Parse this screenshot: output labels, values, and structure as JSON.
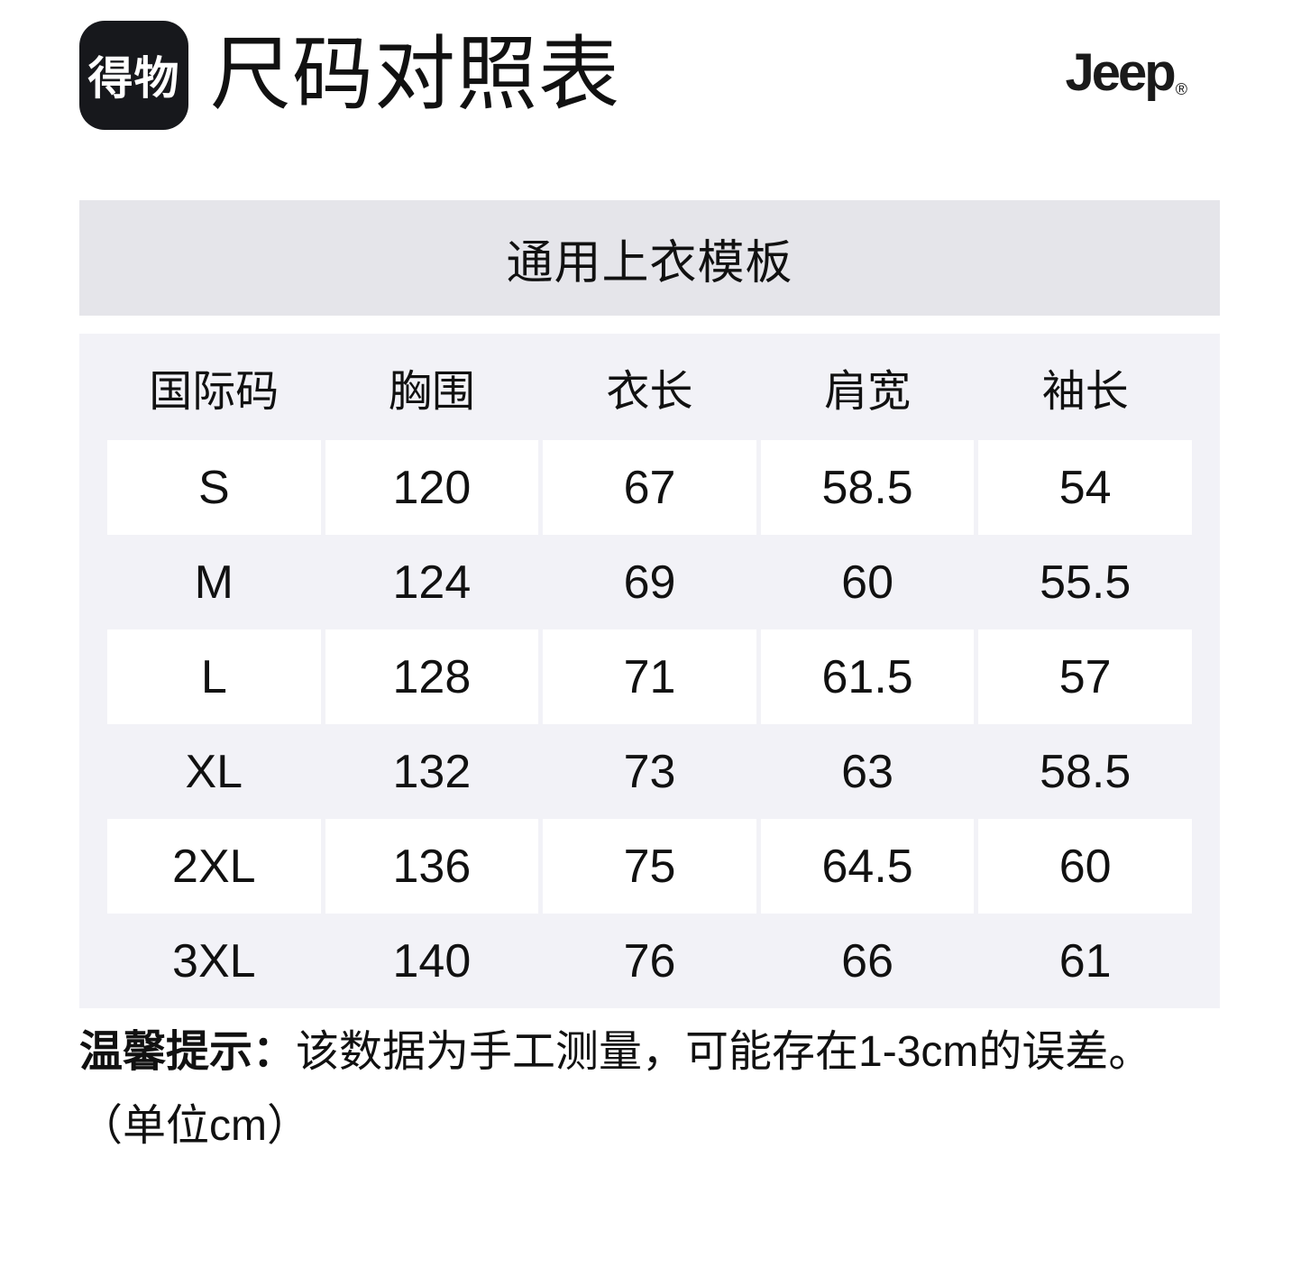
{
  "colors": {
    "page_bg": "#ffffff",
    "logo_bg": "#17181c",
    "logo_text": "#ffffff",
    "band_bg": "#e5e5ea",
    "section_bg": "#f2f2f7",
    "cell_bg": "#ffffff",
    "text": "#111111"
  },
  "header": {
    "app_logo_text": "得物",
    "title": "尺码对照表",
    "brand": "Jeep",
    "brand_reg": "®"
  },
  "size_chart": {
    "template_title": "通用上衣模板",
    "columns": [
      "国际码",
      "胸围",
      "衣长",
      "肩宽",
      "袖长"
    ],
    "rows": [
      {
        "size": "S",
        "values": [
          "120",
          "67",
          "58.5",
          "54"
        ]
      },
      {
        "size": "M",
        "values": [
          "124",
          "69",
          "60",
          "55.5"
        ]
      },
      {
        "size": "L",
        "values": [
          "128",
          "71",
          "61.5",
          "57"
        ]
      },
      {
        "size": "XL",
        "values": [
          "132",
          "73",
          "63",
          "58.5"
        ]
      },
      {
        "size": "2XL",
        "values": [
          "136",
          "75",
          "64.5",
          "60"
        ]
      },
      {
        "size": "3XL",
        "values": [
          "140",
          "76",
          "66",
          "61"
        ]
      }
    ]
  },
  "footer": {
    "note_label": "温馨提示：",
    "note_body": "该数据为手工测量，可能存在1-3cm的误差。",
    "unit_note": "（单位cm）"
  }
}
